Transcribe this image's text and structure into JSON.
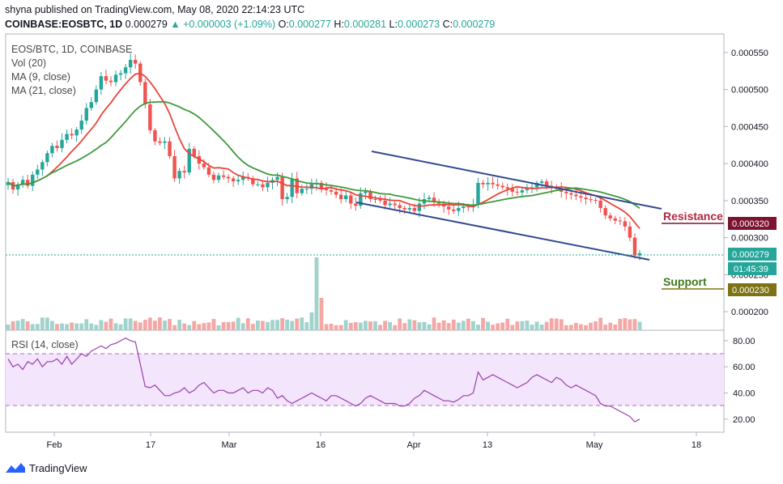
{
  "header": {
    "publisher_line": "shyna published on TradingView.com, May 08, 2020 22:14:23 UTC",
    "symbol": "COINBASE:EOSBTC, 1D",
    "last": "0.000279",
    "change": "+0.000003 (+1.09%)",
    "o_label": "O:",
    "o": "0.000277",
    "h_label": "H:",
    "h": "0.000281",
    "l_label": "L:",
    "l": "0.000273",
    "c_label": "C:",
    "c": "0.000279"
  },
  "legend": {
    "title": "EOS/BTC, 1D, COINBASE",
    "vol": "Vol (20)",
    "ma9": "MA (9, close)",
    "ma21": "MA (21, close)"
  },
  "annotations": {
    "resistance": "Resistance",
    "support": "Support"
  },
  "price_badges": {
    "resistance": "0.000320",
    "last": "0.000279",
    "countdown": "01:45:39",
    "support": "0.000230"
  },
  "rsi_label": "RSI (14, close)",
  "footer": {
    "brand": "TradingView"
  },
  "colors": {
    "up": "#26a69a",
    "down": "#ef5350",
    "vol_up": "#9fd3cc",
    "vol_down": "#f4a8a6",
    "ma9": "#e8453c",
    "ma21": "#3d9a3d",
    "channel": "#2f4a8f",
    "rsi": "#9b3fb0",
    "rsi_band": "#f3e5fb",
    "resistance": "#7b1431",
    "support": "#7d7314"
  },
  "chart_data": [
    {
      "type": "candlestick",
      "title": "EOS/BTC, 1D, COINBASE",
      "x_ticks": [
        "Feb",
        "17",
        "Mar",
        "16",
        "Apr",
        "13",
        "May",
        "18"
      ],
      "y_ticks": [
        "0.000550",
        "0.000500",
        "0.000450",
        "0.000400",
        "0.000350",
        "0.000300",
        "0.000250",
        "0.000200"
      ],
      "ylim": [
        0.000175,
        0.000575
      ],
      "closes": [
        0.000375,
        0.000365,
        0.000372,
        0.000378,
        0.00037,
        0.000385,
        0.000392,
        0.000402,
        0.000414,
        0.000424,
        0.000421,
        0.000432,
        0.00044,
        0.000438,
        0.000446,
        0.000458,
        0.000475,
        0.000483,
        0.0005,
        0.000518,
        0.000512,
        0.00051,
        0.00052,
        0.000522,
        0.00053,
        0.00054,
        0.000535,
        0.00051,
        0.00048,
        0.000445,
        0.00043,
        0.000428,
        0.00043,
        0.00041,
        0.00038,
        0.00039,
        0.000388,
        0.00042,
        0.00041,
        0.0004,
        0.000395,
        0.000385,
        0.000378,
        0.000384,
        0.000382,
        0.00038,
        0.000376,
        0.000378,
        0.000382,
        0.00038,
        0.000372,
        0.000372,
        0.000368,
        0.000374,
        0.000378,
        0.000382,
        0.000352,
        0.000355,
        0.00038,
        0.00036,
        0.000366,
        0.000366,
        0.000372,
        0.000374,
        0.000366,
        0.000364,
        0.000362,
        0.000358,
        0.000352,
        0.000357,
        0.000346,
        0.000343,
        0.00036,
        0.000362,
        0.000352,
        0.000352,
        0.00035,
        0.000344,
        0.000346,
        0.000344,
        0.00034,
        0.000338,
        0.00034,
        0.000336,
        0.000346,
        0.000352,
        0.000354,
        0.000348,
        0.000346,
        0.000342,
        0.000338,
        0.000336,
        0.00034,
        0.000342,
        0.000341,
        0.000345,
        0.000374,
        0.000372,
        0.000374,
        0.000372,
        0.00037,
        0.000368,
        0.000366,
        0.000362,
        0.000361,
        0.000364,
        0.000366,
        0.000368,
        0.000374,
        0.000376,
        0.00037,
        0.000368,
        0.000366,
        0.000362,
        0.00036,
        0.000358,
        0.000356,
        0.000354,
        0.000352,
        0.000351,
        0.00035,
        0.00034,
        0.00033,
        0.000326,
        0.000323,
        0.000322,
        0.000315,
        0.0003,
        0.000276,
        0.000279
      ],
      "volume": "relative bars, spike in mid-March",
      "ma_series": [
        {
          "name": "MA (9, close)"
        },
        {
          "name": "MA (21, close)"
        }
      ],
      "channel": "descending parallel channel (Apr–May)",
      "levels": [
        {
          "name": "Resistance",
          "value": 0.00032
        },
        {
          "name": "Support",
          "value": 0.00023
        }
      ],
      "last_price": 0.000279
    },
    {
      "type": "line",
      "title": "RSI (14, close)",
      "y_ticks": [
        "80.00",
        "60.00",
        "40.00",
        "20.00"
      ],
      "ylim": [
        10,
        88
      ],
      "band": [
        30,
        70
      ],
      "values": [
        66,
        60,
        62,
        58,
        64,
        62,
        66,
        60,
        64,
        64,
        66,
        62,
        68,
        62,
        66,
        70,
        68,
        72,
        74,
        76,
        74,
        77,
        78,
        80,
        82,
        80,
        79,
        62,
        45,
        44,
        46,
        42,
        38,
        38,
        40,
        41,
        44,
        40,
        42,
        46,
        48,
        44,
        40,
        42,
        42,
        40,
        40,
        42,
        44,
        40,
        42,
        42,
        40,
        44,
        42,
        36,
        38,
        34,
        32,
        34,
        36,
        38,
        40,
        38,
        36,
        34,
        38,
        38,
        36,
        34,
        32,
        30,
        32,
        36,
        38,
        36,
        34,
        32,
        32,
        32,
        30,
        30,
        32,
        36,
        38,
        42,
        40,
        38,
        36,
        34,
        34,
        33,
        35,
        38,
        38,
        40,
        56,
        50,
        52,
        54,
        52,
        50,
        48,
        46,
        44,
        46,
        48,
        52,
        54,
        52,
        50,
        48,
        52,
        50,
        46,
        44,
        46,
        44,
        42,
        40,
        38,
        32,
        30,
        30,
        28,
        26,
        24,
        22,
        18,
        20
      ]
    }
  ]
}
